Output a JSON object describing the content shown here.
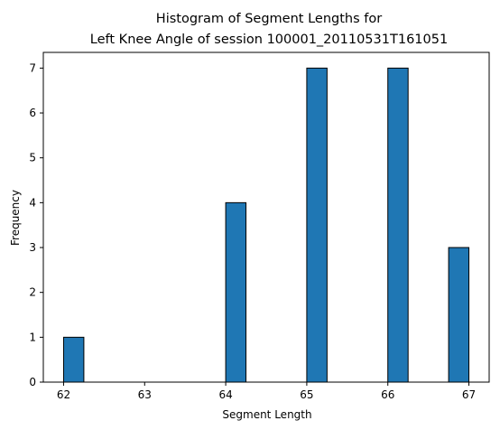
{
  "chart_data": {
    "type": "bar",
    "title_lines": [
      "Histogram of Segment Lengths for",
      "Left Knee Angle of session 100001_20110531T161051"
    ],
    "xlabel": "Segment Length",
    "ylabel": "Frequency",
    "xlim": [
      61.75,
      67.25
    ],
    "ylim": [
      0,
      7.35
    ],
    "x_ticks": [
      62,
      63,
      64,
      65,
      66,
      67
    ],
    "y_ticks": [
      0,
      1,
      2,
      3,
      4,
      5,
      6,
      7
    ],
    "bin_range": [
      62,
      67
    ],
    "bin_count": 20,
    "bins": [
      {
        "start": 62.0,
        "end": 62.25,
        "count": 1
      },
      {
        "start": 64.0,
        "end": 64.25,
        "count": 4
      },
      {
        "start": 65.0,
        "end": 65.25,
        "count": 7
      },
      {
        "start": 66.0,
        "end": 66.25,
        "count": 7
      },
      {
        "start": 66.75,
        "end": 67.0,
        "count": 3
      }
    ],
    "bar_color": "#1f77b4",
    "edge_color": "#000000",
    "grid": false,
    "legend": "none"
  }
}
